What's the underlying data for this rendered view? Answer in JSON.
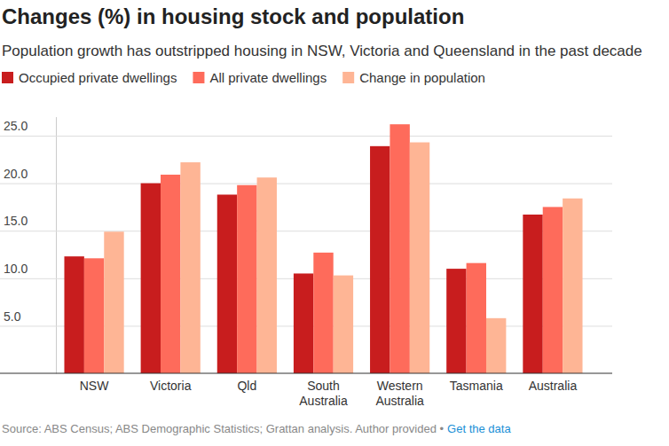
{
  "chart_data": {
    "type": "bar",
    "title": "Changes (%) in housing stock and population",
    "subtitle": "Population growth has outstripped housing in NSW, Victoria and Queensland in the past decade",
    "source": "Source: ABS Census; ABS Demographic Statistics; Grattan analysis. Author provided •",
    "link": "Get the data",
    "categories": [
      "NSW",
      "Victoria",
      "Qld",
      "South Australia",
      "Western Australia",
      "Tasmania",
      "Australia"
    ],
    "series": [
      {
        "name": "Occupied private dwellings",
        "color": "#c81d1e",
        "values": [
          12.3,
          20.0,
          18.8,
          10.5,
          23.9,
          11.0,
          16.7
        ]
      },
      {
        "name": "All private dwellings",
        "color": "#fe6b5b",
        "values": [
          12.1,
          20.9,
          19.8,
          12.7,
          26.2,
          11.6,
          17.5
        ]
      },
      {
        "name": "Change in population",
        "color": "#feb595",
        "values": [
          14.9,
          22.2,
          20.6,
          10.3,
          24.3,
          5.8,
          18.4
        ]
      }
    ],
    "ylim": [
      0,
      27
    ],
    "yticks": [
      {
        "value": 5,
        "label": "5.0"
      },
      {
        "value": 10,
        "label": "10.0"
      },
      {
        "value": 15,
        "label": "15.0"
      },
      {
        "value": 20,
        "label": "20.0"
      },
      {
        "value": 25,
        "label": "25.0"
      }
    ],
    "grid": true,
    "legend": "top-left"
  }
}
